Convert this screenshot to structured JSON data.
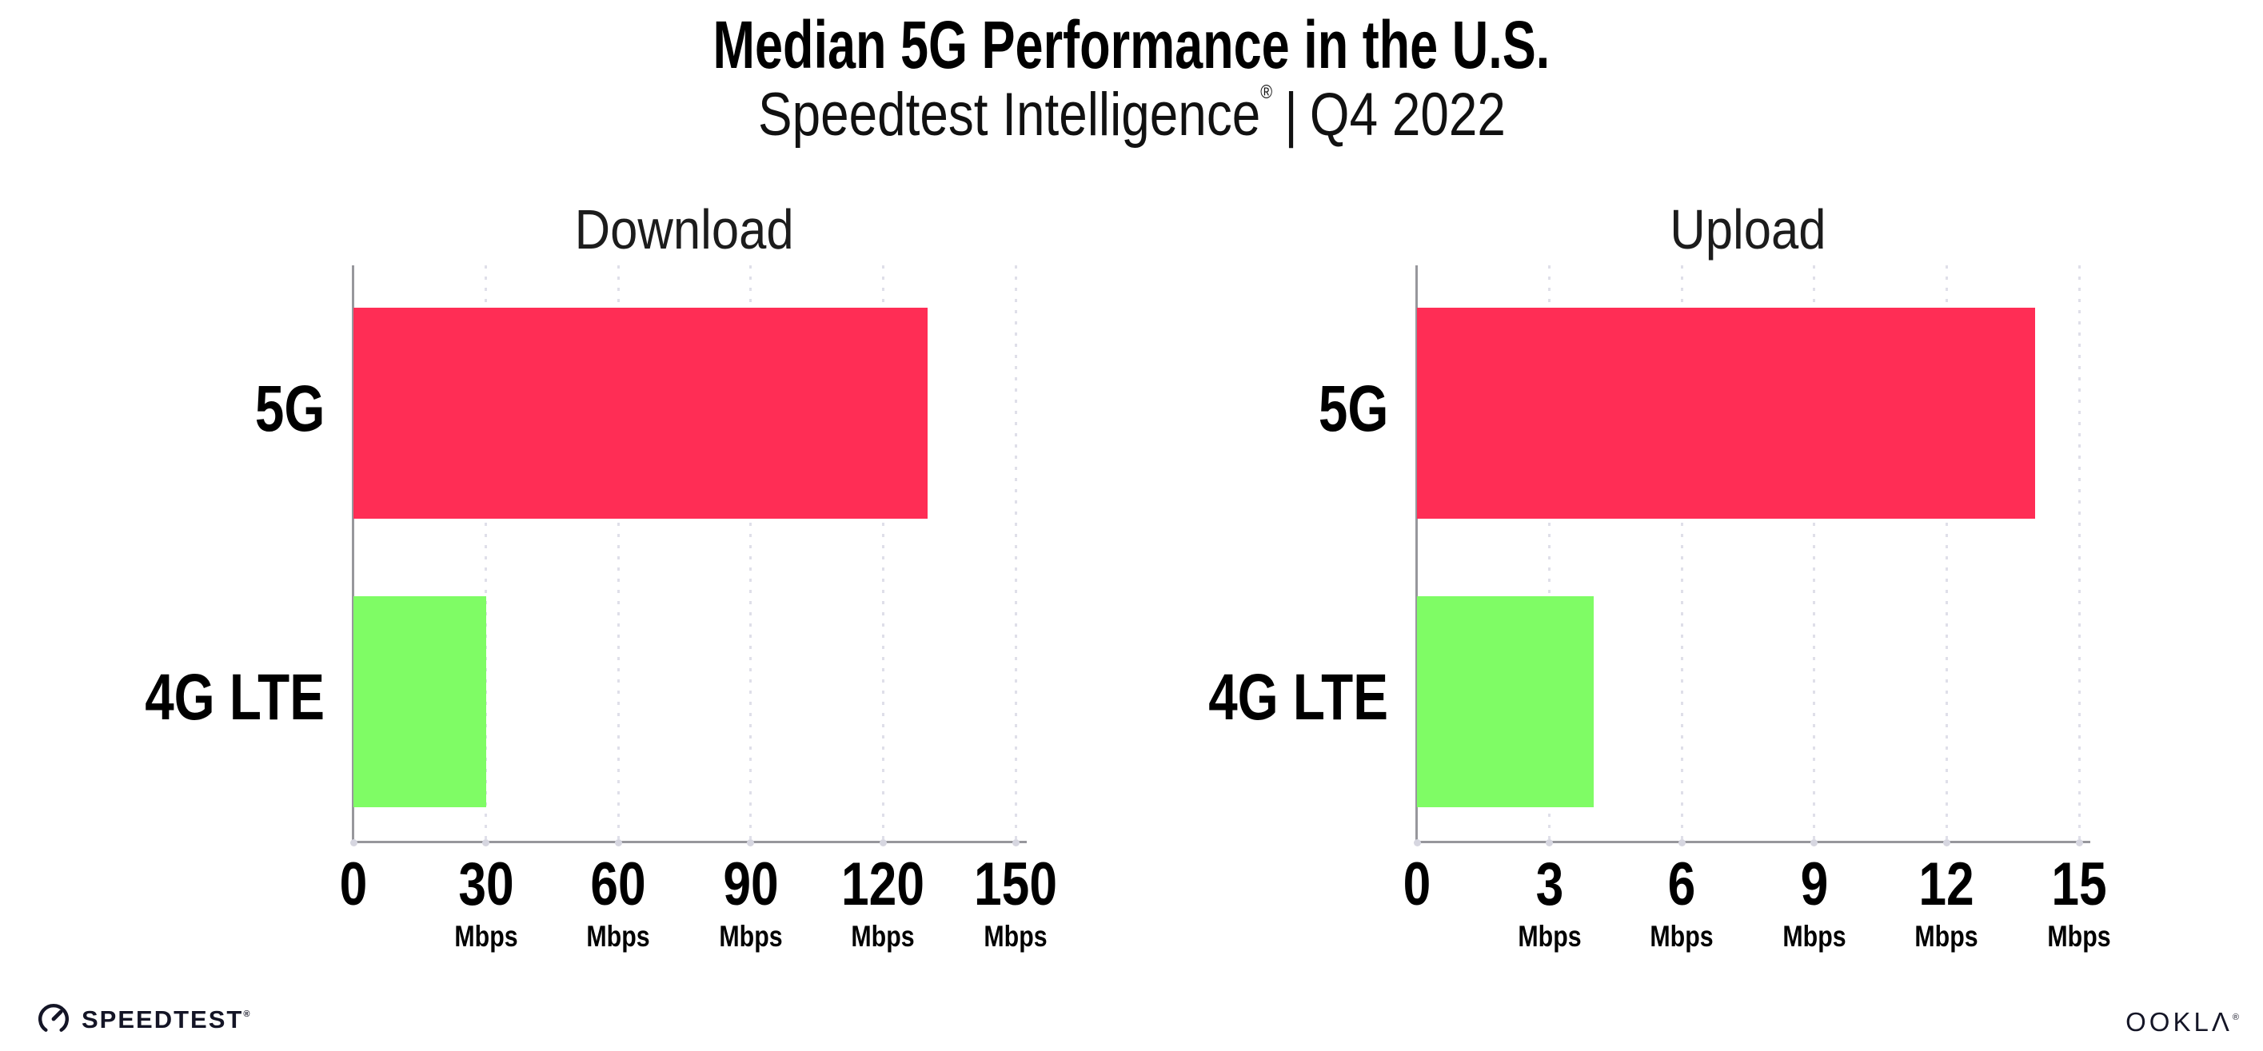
{
  "header": {
    "title": "Median 5G Performance in the U.S.",
    "subtitle_brand": "Speedtest Intelligence",
    "subtitle_reg": "®",
    "subtitle_separator": "|",
    "subtitle_period": "Q4 2022"
  },
  "chart_data": [
    {
      "type": "bar",
      "orientation": "horizontal",
      "title": "Download",
      "categories": [
        "5G",
        "4G LTE"
      ],
      "values": [
        130,
        30
      ],
      "unit": "Mbps",
      "xlim": [
        0,
        150
      ],
      "xticks": [
        0,
        30,
        60,
        90,
        120,
        150
      ],
      "bar_colors": [
        "#ff2d55",
        "#7ffc65"
      ],
      "grid": "dotted-vertical",
      "legend": "none"
    },
    {
      "type": "bar",
      "orientation": "horizontal",
      "title": "Upload",
      "categories": [
        "5G",
        "4G LTE"
      ],
      "values": [
        14,
        4
      ],
      "unit": "Mbps",
      "xlim": [
        0,
        15
      ],
      "xticks": [
        0,
        3,
        6,
        9,
        12,
        15
      ],
      "bar_colors": [
        "#ff2d55",
        "#7ffc65"
      ],
      "grid": "dotted-vertical",
      "legend": "none"
    }
  ],
  "footer": {
    "speedtest_label": "SPEEDTEST",
    "speedtest_reg": "®",
    "ookla_label": "OOKLΛ",
    "ookla_reg": "®"
  },
  "colors": {
    "bar_5g": "#ff2d55",
    "bar_4g_lte": "#7ffc65",
    "axis": "#97979c",
    "gridline": "#dfdfe9",
    "text": "#000000",
    "logo": "#141526"
  }
}
